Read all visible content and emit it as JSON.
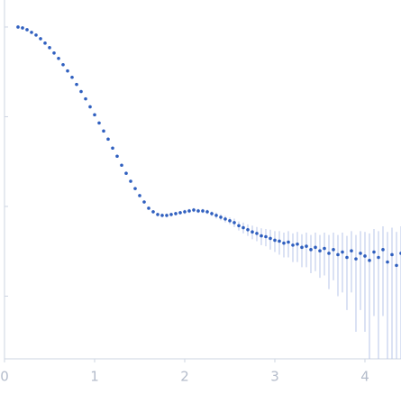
{
  "chart_data": {
    "type": "scatter",
    "log_y": true,
    "color": "#2f5fbf",
    "error_color": "#b7c4ea",
    "xlim": [
      0,
      4.4
    ],
    "xticks": [
      0,
      1,
      2,
      3,
      4
    ],
    "ylim": [
      0.0002,
      2
    ],
    "yticks": [
      0.001,
      0.01,
      0.1,
      1
    ],
    "x": [
      0.15,
      0.2,
      0.25,
      0.3,
      0.35,
      0.4,
      0.45,
      0.5,
      0.55,
      0.6,
      0.65,
      0.7,
      0.75,
      0.8,
      0.85,
      0.9,
      0.95,
      1.0,
      1.05,
      1.1,
      1.15,
      1.2,
      1.25,
      1.3,
      1.35,
      1.4,
      1.45,
      1.5,
      1.55,
      1.6,
      1.65,
      1.7,
      1.75,
      1.8,
      1.85,
      1.9,
      1.95,
      2.0,
      2.05,
      2.1,
      2.15,
      2.2,
      2.25,
      2.3,
      2.35,
      2.4,
      2.45,
      2.5,
      2.55,
      2.6,
      2.65,
      2.7,
      2.75,
      2.8,
      2.85,
      2.9,
      2.95,
      3.0,
      3.05,
      3.1,
      3.15,
      3.2,
      3.25,
      3.3,
      3.35,
      3.4,
      3.45,
      3.5,
      3.55,
      3.6,
      3.65,
      3.7,
      3.75,
      3.8,
      3.85,
      3.9,
      3.95,
      4.0,
      4.05,
      4.1,
      4.15,
      4.2,
      4.25,
      4.3,
      4.35,
      4.4
    ],
    "values": [
      1.0,
      0.977,
      0.933,
      0.871,
      0.813,
      0.741,
      0.661,
      0.589,
      0.513,
      0.447,
      0.38,
      0.324,
      0.275,
      0.229,
      0.191,
      0.158,
      0.129,
      0.105,
      0.0851,
      0.0692,
      0.0562,
      0.0447,
      0.0363,
      0.0288,
      0.0234,
      0.0191,
      0.0158,
      0.0132,
      0.0112,
      0.00955,
      0.00871,
      0.00813,
      0.00794,
      0.00794,
      0.00813,
      0.00832,
      0.00851,
      0.00871,
      0.00891,
      0.00912,
      0.00891,
      0.00891,
      0.00871,
      0.00832,
      0.00794,
      0.00759,
      0.00724,
      0.00692,
      0.0066,
      0.0061,
      0.0058,
      0.0055,
      0.0052,
      0.005,
      0.0047,
      0.0046,
      0.0044,
      0.0042,
      0.0041,
      0.0039,
      0.004,
      0.0037,
      0.0038,
      0.0035,
      0.0036,
      0.0033,
      0.0035,
      0.0032,
      0.0034,
      0.003,
      0.0033,
      0.0029,
      0.0031,
      0.0027,
      0.0032,
      0.0026,
      0.003,
      0.0028,
      0.0025,
      0.0031,
      0.0027,
      0.0033,
      0.0024,
      0.0029,
      0.0022,
      0.003
    ],
    "errors": [
      0.01,
      0.01,
      0.009,
      0.009,
      0.008,
      0.007,
      0.007,
      0.006,
      0.005,
      0.004,
      0.004,
      0.003,
      0.003,
      0.002,
      0.002,
      0.002,
      0.001,
      0.001,
      0.0009,
      0.0007,
      0.0006,
      0.0004,
      0.0004,
      0.0003,
      0.0002,
      0.0002,
      0.0002,
      0.0001,
      0.0003,
      0.0003,
      0.0004,
      0.0004,
      0.0004,
      0.0004,
      0.0004,
      0.0004,
      0.0004,
      0.0005,
      0.0005,
      0.0005,
      0.0005,
      0.0005,
      0.0005,
      0.0005,
      0.0006,
      0.0006,
      0.0006,
      0.0006,
      0.0007,
      0.0007,
      0.0008,
      0.0008,
      0.0009,
      0.0009,
      0.001,
      0.001,
      0.0011,
      0.0011,
      0.0012,
      0.0012,
      0.0013,
      0.0013,
      0.0014,
      0.0014,
      0.0015,
      0.0015,
      0.0016,
      0.0016,
      0.0017,
      0.0018,
      0.0018,
      0.0019,
      0.002,
      0.002,
      0.0021,
      0.0022,
      0.0023,
      0.0024,
      0.0025,
      0.0025,
      0.0026,
      0.0027,
      0.0028,
      0.0029,
      0.003,
      0.003
    ]
  }
}
